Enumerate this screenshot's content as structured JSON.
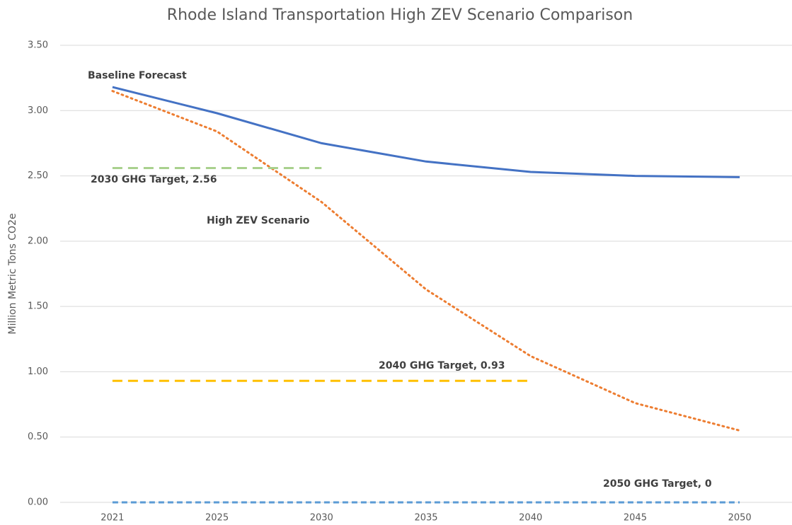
{
  "chart_data": {
    "type": "line",
    "title": "Rhode Island Transportation High ZEV Scenario Comparison",
    "y_label": "Million Metric Tons CO2e",
    "categories": [
      "2021",
      "2025",
      "2030",
      "2035",
      "2040",
      "2045",
      "2050"
    ],
    "series": [
      {
        "name": "Baseline Forecast",
        "color": "#4472c4",
        "style": "solid",
        "values": [
          3.18,
          2.98,
          2.75,
          2.61,
          2.53,
          2.5,
          2.49
        ]
      },
      {
        "name": "High ZEV Scenario",
        "color": "#ed7d31",
        "style": "dotted",
        "values": [
          3.15,
          2.84,
          2.3,
          1.63,
          1.12,
          0.76,
          0.55
        ]
      },
      {
        "name": "2030 GHG Target, 2.56",
        "color": "#a9d18e",
        "style": "dashed",
        "values": [
          2.56,
          2.56,
          2.56,
          null,
          null,
          null,
          null
        ]
      },
      {
        "name": "2040 GHG Target, 0.93",
        "color": "#ffc000",
        "style": "dashed",
        "values": [
          0.93,
          0.93,
          0.93,
          0.93,
          0.93,
          null,
          null
        ]
      },
      {
        "name": "2050 GHG Target, 0",
        "color": "#5b9bd5",
        "style": "dashed",
        "values": [
          0,
          0,
          0,
          0,
          0,
          0,
          0
        ]
      }
    ],
    "ylim": [
      0,
      3.5
    ],
    "yticks": [
      {
        "value": 0,
        "label": "0.00"
      },
      {
        "value": 0.5,
        "label": "0.50"
      },
      {
        "value": 1,
        "label": "1.00"
      },
      {
        "value": 1.5,
        "label": "1.50"
      },
      {
        "value": 2,
        "label": "2.00"
      },
      {
        "value": 2.5,
        "label": "2.50"
      },
      {
        "value": 3,
        "label": "3.00"
      },
      {
        "value": 3.5,
        "label": "3.50"
      }
    ],
    "grid": true,
    "legend": false
  }
}
